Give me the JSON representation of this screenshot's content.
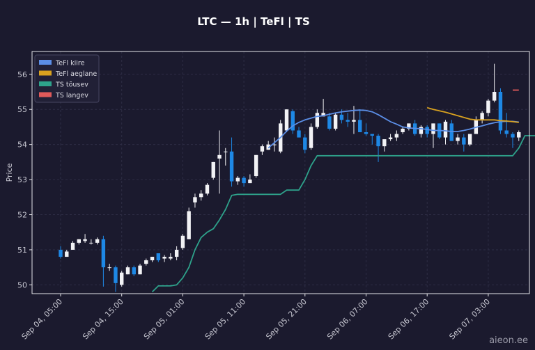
{
  "chart_data": {
    "type": "candlestick",
    "title": "LTC — 1h  |  TeFl  |  TS",
    "ylabel": "Price",
    "ylim": [
      49.75,
      56.65
    ],
    "yticks": [
      50,
      51,
      52,
      53,
      54,
      55,
      56
    ],
    "x_tick_labels": [
      "Sep 04, 05:00",
      "Sep 04, 15:00",
      "Sep 05, 01:00",
      "Sep 05, 11:00",
      "Sep 05, 21:00",
      "Sep 06, 07:00",
      "Sep 06, 17:00",
      "Sep 07, 03:00"
    ],
    "x_tick_index": [
      0,
      10,
      20,
      30,
      40,
      50,
      60,
      70
    ],
    "grid": true,
    "legend_position": "top-left",
    "candles": [
      [
        51.0,
        51.1,
        50.75,
        50.8
      ],
      [
        50.8,
        51.0,
        50.8,
        50.95
      ],
      [
        51.0,
        51.25,
        51.0,
        51.2
      ],
      [
        51.2,
        51.3,
        51.15,
        51.3
      ],
      [
        51.25,
        51.45,
        51.2,
        51.3
      ],
      [
        51.2,
        51.3,
        51.15,
        51.2
      ],
      [
        51.2,
        51.35,
        51.15,
        51.3
      ],
      [
        51.3,
        51.4,
        49.95,
        50.5
      ],
      [
        50.5,
        50.6,
        50.4,
        50.5
      ],
      [
        50.5,
        50.55,
        49.8,
        50.05
      ],
      [
        50.0,
        50.4,
        49.95,
        50.35
      ],
      [
        50.3,
        50.55,
        50.3,
        50.5
      ],
      [
        50.5,
        50.55,
        50.25,
        50.3
      ],
      [
        50.3,
        50.6,
        50.3,
        50.55
      ],
      [
        50.6,
        50.75,
        50.55,
        50.7
      ],
      [
        50.7,
        50.8,
        50.65,
        50.8
      ],
      [
        50.9,
        50.9,
        50.65,
        50.7
      ],
      [
        50.75,
        50.85,
        50.65,
        50.8
      ],
      [
        50.75,
        50.9,
        50.7,
        50.8
      ],
      [
        50.8,
        51.1,
        50.7,
        51.0
      ],
      [
        51.05,
        51.45,
        51.0,
        51.4
      ],
      [
        51.3,
        52.2,
        51.3,
        52.1
      ],
      [
        52.35,
        52.6,
        52.2,
        52.5
      ],
      [
        52.5,
        52.7,
        52.4,
        52.6
      ],
      [
        52.6,
        52.9,
        52.55,
        52.85
      ],
      [
        53.05,
        53.5,
        53.0,
        53.5
      ],
      [
        53.6,
        54.4,
        52.6,
        53.7
      ],
      [
        53.8,
        53.9,
        53.4,
        53.8
      ],
      [
        53.8,
        54.2,
        52.8,
        52.95
      ],
      [
        52.95,
        53.1,
        52.85,
        53.05
      ],
      [
        53.05,
        53.1,
        52.8,
        52.9
      ],
      [
        52.9,
        53.15,
        52.9,
        53.0
      ],
      [
        53.1,
        53.7,
        53.05,
        53.7
      ],
      [
        53.8,
        54.0,
        53.7,
        53.95
      ],
      [
        53.85,
        54.1,
        53.85,
        54.0
      ],
      [
        54.0,
        54.2,
        53.8,
        54.0
      ],
      [
        53.8,
        54.7,
        53.75,
        54.6
      ],
      [
        54.4,
        55.0,
        54.35,
        55.0
      ],
      [
        54.95,
        55.0,
        54.3,
        54.4
      ],
      [
        54.4,
        54.5,
        54.2,
        54.2
      ],
      [
        54.2,
        54.3,
        53.75,
        53.85
      ],
      [
        53.9,
        54.6,
        53.85,
        54.5
      ],
      [
        54.5,
        55.0,
        54.45,
        54.9
      ],
      [
        54.8,
        55.3,
        54.8,
        54.9
      ],
      [
        54.8,
        54.9,
        54.4,
        54.45
      ],
      [
        54.45,
        54.9,
        54.4,
        54.85
      ],
      [
        54.85,
        55.0,
        54.6,
        54.7
      ],
      [
        54.7,
        54.9,
        54.5,
        54.65
      ],
      [
        54.65,
        55.1,
        54.3,
        54.7
      ],
      [
        54.7,
        55.0,
        54.35,
        54.35
      ],
      [
        54.35,
        54.6,
        54.25,
        54.3
      ],
      [
        54.3,
        54.3,
        54.0,
        54.25
      ],
      [
        54.25,
        54.3,
        53.5,
        53.95
      ],
      [
        53.95,
        54.1,
        53.8,
        54.15
      ],
      [
        54.15,
        54.3,
        54.1,
        54.2
      ],
      [
        54.2,
        54.4,
        54.1,
        54.3
      ],
      [
        54.35,
        54.5,
        54.3,
        54.45
      ],
      [
        54.45,
        54.6,
        54.4,
        54.6
      ],
      [
        54.6,
        54.7,
        54.25,
        54.3
      ],
      [
        54.3,
        54.55,
        54.2,
        54.5
      ],
      [
        54.5,
        54.55,
        54.2,
        54.3
      ],
      [
        54.3,
        54.6,
        53.9,
        54.6
      ],
      [
        54.6,
        54.6,
        54.15,
        54.2
      ],
      [
        54.2,
        54.7,
        54.0,
        54.65
      ],
      [
        54.6,
        54.7,
        54.1,
        54.1
      ],
      [
        54.1,
        54.3,
        54.0,
        54.2
      ],
      [
        54.2,
        54.3,
        53.8,
        54.0
      ],
      [
        54.0,
        54.3,
        53.95,
        54.3
      ],
      [
        54.3,
        54.8,
        54.3,
        54.7
      ],
      [
        54.7,
        54.95,
        54.6,
        54.9
      ],
      [
        54.9,
        55.3,
        54.8,
        55.25
      ],
      [
        55.25,
        56.3,
        55.2,
        55.5
      ],
      [
        55.5,
        55.6,
        54.3,
        54.4
      ],
      [
        54.4,
        54.9,
        54.2,
        54.3
      ],
      [
        54.3,
        54.35,
        53.9,
        54.2
      ],
      [
        54.2,
        54.4,
        54.1,
        54.35
      ]
    ],
    "series": [
      {
        "name": "TeFl kiire",
        "color": "#5b8ee6",
        "start": 34,
        "values": [
          53.9,
          54.05,
          54.2,
          54.38,
          54.53,
          54.63,
          54.7,
          54.75,
          54.8,
          54.82,
          54.86,
          54.9,
          54.93,
          54.95,
          54.97,
          54.98,
          54.97,
          54.93,
          54.85,
          54.75,
          54.65,
          54.58,
          54.5,
          54.47,
          54.46,
          54.45,
          54.43,
          54.4,
          54.4,
          54.39,
          54.37,
          54.37,
          54.4,
          54.44,
          54.49,
          54.53,
          54.58,
          54.62,
          54.65,
          54.66,
          54.66,
          54.64
        ]
      },
      {
        "name": "TeFl aeglane",
        "color": "#d9a21f",
        "start": 60,
        "values": [
          55.05,
          55.0,
          54.96,
          54.92,
          54.87,
          54.82,
          54.77,
          54.72,
          54.7,
          54.7,
          54.7,
          54.7,
          54.68,
          54.67,
          54.65,
          54.63
        ]
      },
      {
        "name": "TS tõusev",
        "color": "#2ea28b",
        "start": 15,
        "values": [
          49.8,
          49.97,
          49.97,
          49.97,
          50.0,
          50.2,
          50.5,
          51.0,
          51.35,
          51.5,
          51.6,
          51.85,
          52.15,
          52.55,
          52.58,
          52.58,
          52.58,
          52.58,
          52.58,
          52.58,
          52.58,
          52.58,
          52.7,
          52.7,
          52.7,
          53.0,
          53.4,
          53.68,
          53.68,
          53.68,
          53.68,
          53.68,
          53.68,
          53.68,
          53.68,
          53.68,
          53.68,
          53.68,
          53.68,
          53.68,
          53.68,
          53.68,
          53.68,
          53.68,
          53.68,
          53.68,
          53.68,
          53.68,
          53.68,
          53.68,
          53.68,
          53.68,
          53.68,
          53.68,
          53.68,
          53.68,
          53.68,
          53.68,
          53.68,
          53.68,
          53.9,
          54.25,
          54.25,
          54.25
        ]
      },
      {
        "name": "TS langev",
        "color": "#e05a5a",
        "start": 74,
        "values": [
          55.55,
          55.55
        ]
      }
    ]
  },
  "watermark": "aieon.ee"
}
